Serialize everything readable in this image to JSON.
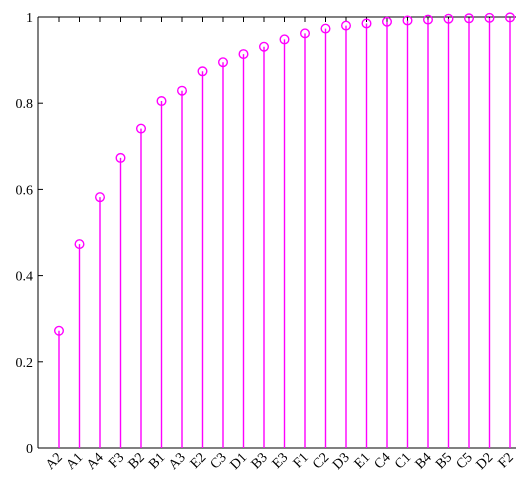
{
  "chart_data": {
    "type": "stem",
    "categories": [
      "A2",
      "A1",
      "A4",
      "F3",
      "B2",
      "B1",
      "A3",
      "E2",
      "C3",
      "D1",
      "B3",
      "E3",
      "F1",
      "C2",
      "D3",
      "E1",
      "C4",
      "C1",
      "B4",
      "B5",
      "C5",
      "D2",
      "F2"
    ],
    "values": [
      0.272,
      0.473,
      0.582,
      0.673,
      0.741,
      0.805,
      0.829,
      0.874,
      0.895,
      0.914,
      0.931,
      0.948,
      0.962,
      0.973,
      0.98,
      0.985,
      0.989,
      0.992,
      0.994,
      0.996,
      0.997,
      0.998,
      0.999
    ],
    "ylim": [
      0,
      1
    ],
    "yticks": [
      0,
      0.2,
      0.4,
      0.6,
      0.8,
      1
    ],
    "ytick_labels": [
      "0",
      "0.2",
      "0.4",
      "0.6",
      "0.8",
      "1"
    ],
    "xlabel": "",
    "ylabel": "",
    "title": "",
    "grid": false,
    "marker": "open-circle",
    "color": "#ff00ff"
  }
}
